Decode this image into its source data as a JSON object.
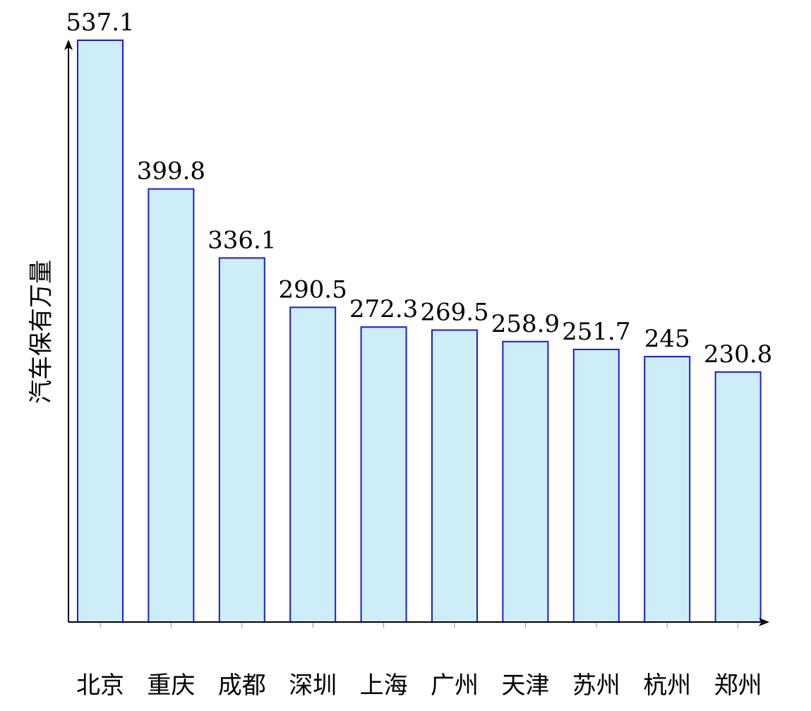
{
  "chart_data": {
    "type": "bar",
    "title": "",
    "xlabel": "",
    "ylabel": "汽车保有万量",
    "categories": [
      "北京",
      "重庆",
      "成都",
      "深圳",
      "上海",
      "广州",
      "天津",
      "苏州",
      "杭州",
      "郑州"
    ],
    "values": [
      537.1,
      399.8,
      336.1,
      290.5,
      272.3,
      269.5,
      258.9,
      251.7,
      245,
      230.8
    ],
    "value_labels": [
      "537.1",
      "399.8",
      "336.1",
      "290.5",
      "272.3",
      "269.5",
      "258.9",
      "251.7",
      "245",
      "230.8"
    ],
    "ylim": [
      0,
      537.1
    ],
    "grid": false,
    "legend": "none",
    "colors": {
      "bar_fill": "#cdeef9",
      "bar_stroke": "#1a1adf",
      "axis": "#000000"
    }
  }
}
